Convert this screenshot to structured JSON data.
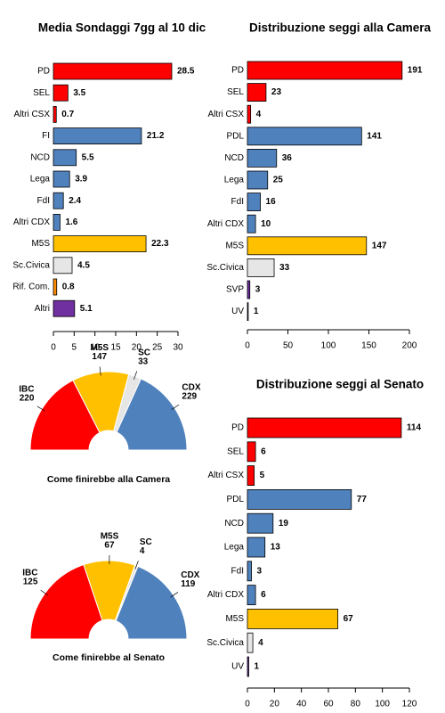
{
  "chart_data": [
    {
      "type": "bar",
      "orientation": "horizontal",
      "title": "Media Sondaggi 7gg al 10 dic",
      "categories": [
        "PD",
        "SEL",
        "Altri CSX",
        "FI",
        "NCD",
        "Lega",
        "FdI",
        "Altri CDX",
        "M5S",
        "Sc.Civica",
        "Rif. Com.",
        "Altri"
      ],
      "values": [
        28.5,
        3.5,
        0.7,
        21.2,
        5.5,
        3.9,
        2.4,
        1.6,
        22.3,
        4.5,
        0.8,
        5.1
      ],
      "colors": [
        "#ff0000",
        "#ff0000",
        "#ff0000",
        "#4f81bd",
        "#4f81bd",
        "#4f81bd",
        "#4f81bd",
        "#4f81bd",
        "#ffc000",
        "#e6e6e6",
        "#ff8c00",
        "#7030a0"
      ],
      "xlim": [
        0,
        30
      ],
      "xticks": [
        0,
        5,
        10,
        15,
        20,
        25,
        30
      ]
    },
    {
      "type": "bar",
      "orientation": "horizontal",
      "title": "Distribuzione seggi alla Camera",
      "categories": [
        "PD",
        "SEL",
        "Altri CSX",
        "PDL",
        "NCD",
        "Lega",
        "FdI",
        "Altri CDX",
        "M5S",
        "Sc.Civica",
        "SVP",
        "UV"
      ],
      "values": [
        191,
        23,
        4,
        141,
        36,
        25,
        16,
        10,
        147,
        33,
        3,
        1
      ],
      "colors": [
        "#ff0000",
        "#ff0000",
        "#ff0000",
        "#4f81bd",
        "#4f81bd",
        "#4f81bd",
        "#4f81bd",
        "#4f81bd",
        "#ffc000",
        "#e6e6e6",
        "#7030a0",
        "#7030a0"
      ],
      "xlim": [
        0,
        200
      ],
      "xticks": [
        0,
        50,
        100,
        150,
        200
      ]
    },
    {
      "type": "bar",
      "orientation": "horizontal",
      "title": "Distribuzione seggi al Senato",
      "categories": [
        "PD",
        "SEL",
        "Altri CSX",
        "PDL",
        "NCD",
        "Lega",
        "FdI",
        "Altri CDX",
        "M5S",
        "Sc.Civica",
        "UV"
      ],
      "values": [
        114,
        6,
        5,
        77,
        19,
        13,
        3,
        6,
        67,
        4,
        1
      ],
      "colors": [
        "#ff0000",
        "#ff0000",
        "#ff0000",
        "#4f81bd",
        "#4f81bd",
        "#4f81bd",
        "#4f81bd",
        "#4f81bd",
        "#ffc000",
        "#e6e6e6",
        "#7030a0"
      ],
      "xlim": [
        0,
        120
      ],
      "xticks": [
        0,
        20,
        40,
        60,
        80,
        100,
        120
      ]
    },
    {
      "type": "pie",
      "semicircle": true,
      "title": "Come finirebbe alla Camera",
      "categories": [
        "IBC",
        "M5S",
        "SC",
        "CDX"
      ],
      "values": [
        220,
        147,
        33,
        229
      ],
      "colors": [
        "#ff0000",
        "#ffc000",
        "#e6e6e6",
        "#4f81bd"
      ]
    },
    {
      "type": "pie",
      "semicircle": true,
      "title": "Come finirebbe al Senato",
      "categories": [
        "IBC",
        "M5S",
        "SC",
        "CDX"
      ],
      "values": [
        125,
        67,
        4,
        119
      ],
      "colors": [
        "#ff0000",
        "#ffc000",
        "#e6e6e6",
        "#4f81bd"
      ]
    }
  ]
}
